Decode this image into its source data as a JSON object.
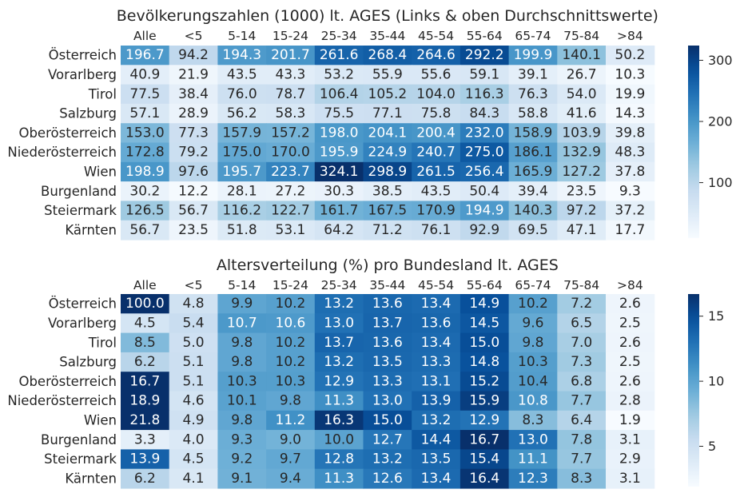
{
  "chart_data": [
    {
      "type": "heatmap",
      "title": "Bevölkerungszahlen (1000) lt. AGES (Links & oben Durchschnittswerte)",
      "columns": [
        "Alle",
        "<5",
        "5-14",
        "15-24",
        "25-34",
        "35-44",
        "45-54",
        "55-64",
        "65-74",
        "75-84",
        ">84"
      ],
      "rows": [
        "Österreich",
        "Vorarlberg",
        "Tirol",
        "Salzburg",
        "Oberösterreich",
        "Niederösterreich",
        "Wien",
        "Burgenland",
        "Steiermark",
        "Kärnten"
      ],
      "values": [
        [
          196.7,
          94.2,
          194.3,
          201.7,
          261.6,
          268.4,
          264.6,
          292.2,
          199.9,
          140.1,
          50.2
        ],
        [
          40.9,
          21.9,
          43.5,
          43.3,
          53.2,
          55.9,
          55.6,
          59.1,
          39.1,
          26.7,
          10.3
        ],
        [
          77.5,
          38.4,
          76.0,
          78.7,
          106.4,
          105.2,
          104.0,
          116.3,
          76.3,
          54.0,
          19.9
        ],
        [
          57.1,
          28.9,
          56.2,
          58.3,
          75.5,
          77.1,
          75.8,
          84.3,
          58.8,
          41.6,
          14.3
        ],
        [
          153.0,
          77.3,
          157.9,
          157.2,
          198.0,
          204.1,
          200.4,
          232.0,
          158.9,
          103.9,
          39.8
        ],
        [
          172.8,
          79.2,
          175.0,
          170.0,
          195.9,
          224.9,
          240.7,
          275.0,
          186.1,
          132.9,
          48.3
        ],
        [
          198.9,
          97.6,
          195.7,
          223.7,
          324.1,
          298.9,
          261.5,
          256.4,
          165.9,
          127.2,
          37.8
        ],
        [
          30.2,
          12.2,
          28.1,
          27.2,
          30.3,
          38.5,
          43.5,
          50.4,
          39.4,
          23.5,
          9.3
        ],
        [
          126.5,
          56.7,
          116.2,
          122.7,
          161.7,
          167.5,
          170.9,
          194.9,
          140.3,
          97.2,
          37.2
        ],
        [
          56.7,
          23.5,
          51.8,
          53.1,
          64.2,
          71.2,
          76.1,
          92.9,
          69.5,
          47.1,
          17.7
        ]
      ],
      "colormap": "Blues",
      "vmin": 9.3,
      "vmax": 324.1,
      "colorbar_ticks": [
        100,
        200,
        300
      ]
    },
    {
      "type": "heatmap",
      "title": "Altersverteilung (%) pro Bundesland lt. AGES",
      "columns": [
        "Alle",
        "<5",
        "5-14",
        "15-24",
        "25-34",
        "35-44",
        "45-54",
        "55-64",
        "65-74",
        "75-84",
        ">84"
      ],
      "rows": [
        "Österreich",
        "Vorarlberg",
        "Tirol",
        "Salzburg",
        "Oberösterreich",
        "Niederösterreich",
        "Wien",
        "Burgenland",
        "Steiermark",
        "Kärnten"
      ],
      "values": [
        [
          100.0,
          4.8,
          9.9,
          10.2,
          13.2,
          13.6,
          13.4,
          14.9,
          10.2,
          7.2,
          2.6
        ],
        [
          4.5,
          5.4,
          10.7,
          10.6,
          13.0,
          13.7,
          13.6,
          14.5,
          9.6,
          6.5,
          2.5
        ],
        [
          8.5,
          5.0,
          9.8,
          10.2,
          13.7,
          13.6,
          13.4,
          15.0,
          9.8,
          7.0,
          2.6
        ],
        [
          6.2,
          5.1,
          9.8,
          10.2,
          13.2,
          13.5,
          13.3,
          14.8,
          10.3,
          7.3,
          2.5
        ],
        [
          16.7,
          5.1,
          10.3,
          10.3,
          12.9,
          13.3,
          13.1,
          15.2,
          10.4,
          6.8,
          2.6
        ],
        [
          18.9,
          4.6,
          10.1,
          9.8,
          11.3,
          13.0,
          13.9,
          15.9,
          10.8,
          7.7,
          2.8
        ],
        [
          21.8,
          4.9,
          9.8,
          11.2,
          16.3,
          15.0,
          13.2,
          12.9,
          8.3,
          6.4,
          1.9
        ],
        [
          3.3,
          4.0,
          9.3,
          9.0,
          10.0,
          12.7,
          14.4,
          16.7,
          13.0,
          7.8,
          3.1
        ],
        [
          13.9,
          4.5,
          9.2,
          9.7,
          12.8,
          13.2,
          13.5,
          15.4,
          11.1,
          7.7,
          2.9
        ],
        [
          6.2,
          4.1,
          9.1,
          9.4,
          11.3,
          12.6,
          13.4,
          16.4,
          12.3,
          8.3,
          3.1
        ]
      ],
      "colormap": "Blues",
      "vmin": 1.9,
      "vmax": 16.7,
      "colorbar_ticks": [
        5,
        10,
        15
      ]
    }
  ]
}
